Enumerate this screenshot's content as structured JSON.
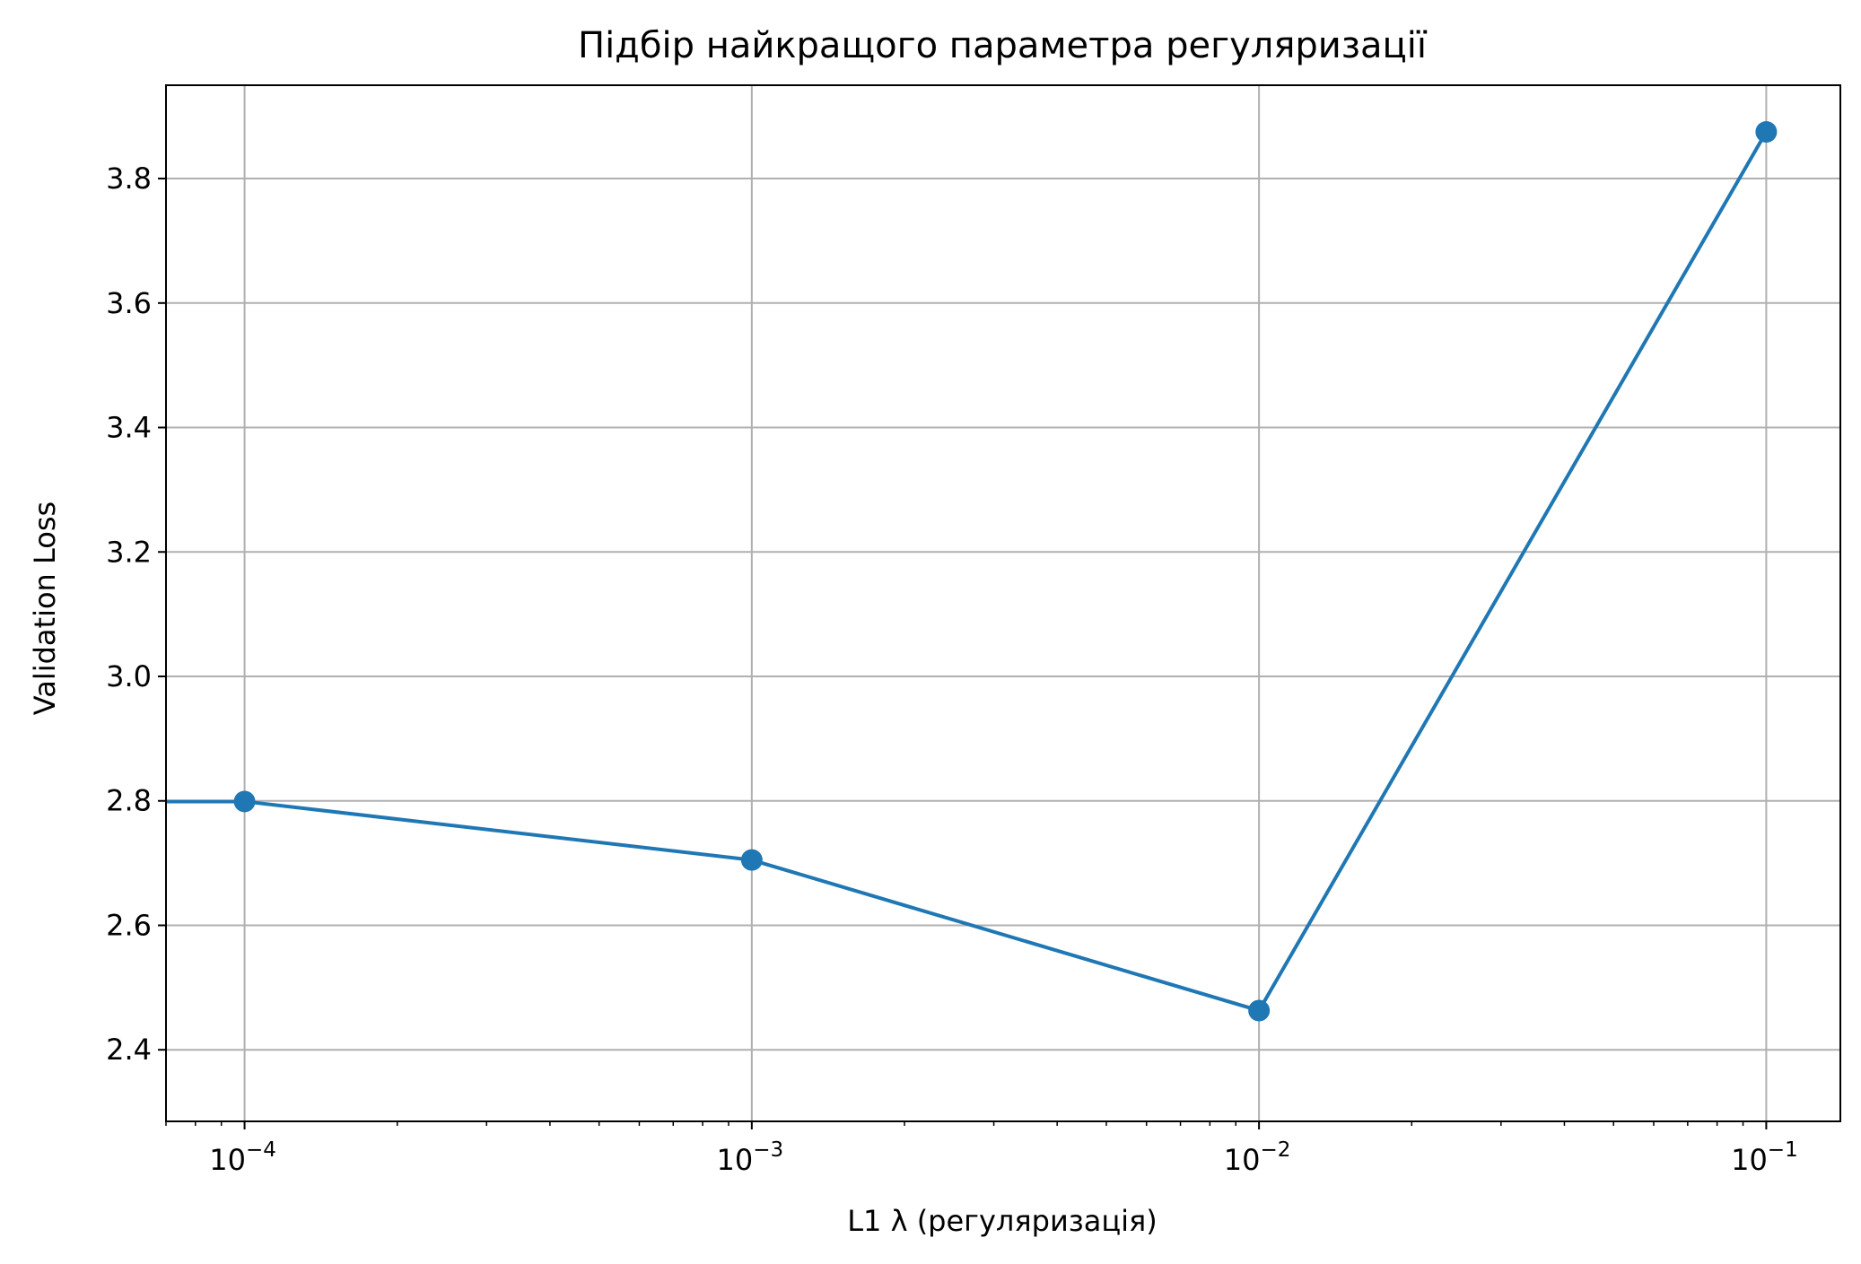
{
  "chart_data": {
    "type": "line",
    "title": "Підбір найкращого параметра регуляризації",
    "xlabel": "L1 λ (регуляризація)",
    "ylabel": "Validation Loss",
    "x_scale": "log",
    "xlim": [
      7e-05,
      0.14
    ],
    "ylim": [
      2.285,
      3.95
    ],
    "grid": true,
    "x_ticks": [
      {
        "value": 0.0001,
        "base": "10",
        "exp": "−4"
      },
      {
        "value": 0.001,
        "base": "10",
        "exp": "−3"
      },
      {
        "value": 0.01,
        "base": "10",
        "exp": "−2"
      },
      {
        "value": 0.1,
        "base": "10",
        "exp": "−1"
      }
    ],
    "y_ticks": [
      2.4,
      2.6,
      2.8,
      3.0,
      3.2,
      3.4,
      3.6,
      3.8
    ],
    "y_tick_labels": [
      "2.4",
      "2.6",
      "2.8",
      "3.0",
      "3.2",
      "3.4",
      "3.6",
      "3.8"
    ],
    "series": [
      {
        "color": "#1f77b4",
        "x": [
          0.0001,
          0.001,
          0.01,
          0.1
        ],
        "y": [
          2.799,
          2.705,
          2.463,
          3.875
        ],
        "line_extends_left_from_first_point": true
      }
    ]
  }
}
